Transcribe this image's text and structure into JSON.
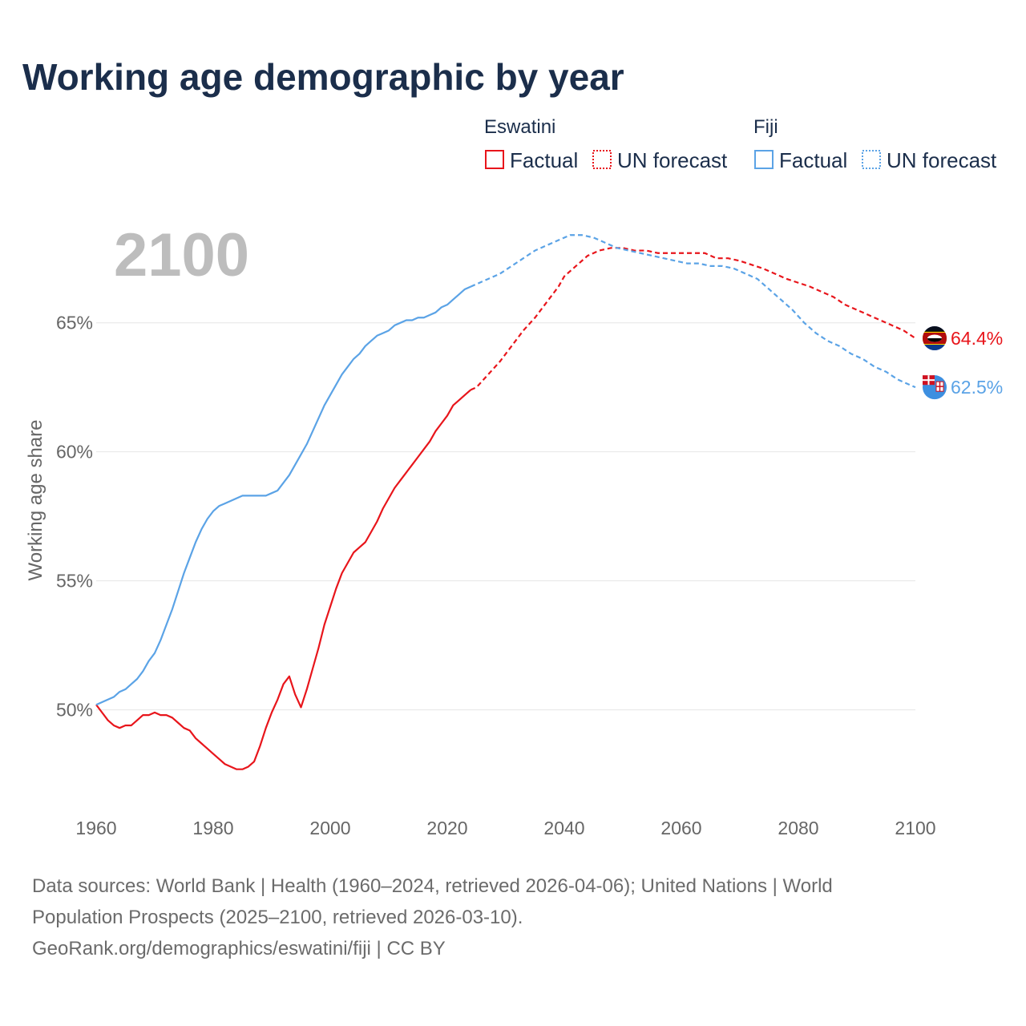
{
  "title": "Working age demographic by year",
  "year_watermark": "2100",
  "legend": {
    "groups": [
      {
        "name": "Eswatini",
        "color": "#e8151b",
        "factual_label": "Factual",
        "forecast_label": "UN forecast"
      },
      {
        "name": "Fiji",
        "color": "#5ba3e6",
        "factual_label": "Factual",
        "forecast_label": "UN forecast"
      }
    ]
  },
  "end_labels": {
    "eswatini": "64.4%",
    "fiji": "62.5%"
  },
  "flags": {
    "eswatini": "eswatini-flag-icon",
    "fiji": "fiji-flag-icon"
  },
  "source": {
    "line1": "Data sources: World Bank | Health (1960–2024, retrieved 2026-04-06); United Nations | World",
    "line2": "Population Prospects (2025–2100, retrieved 2026-03-10).",
    "line3": "GeoRank.org/demographics/eswatini/fiji | CC BY"
  },
  "chart_data": {
    "type": "line",
    "title": "Working age demographic by year",
    "xlabel": "",
    "ylabel": "Working age share",
    "xlim": [
      1960,
      2100
    ],
    "ylim": [
      46.2,
      68.5
    ],
    "x_ticks": [
      1960,
      1980,
      2000,
      2020,
      2040,
      2060,
      2080,
      2100
    ],
    "x_tick_labels": [
      "1960",
      "1980",
      "2000",
      "2020",
      "2040",
      "2060",
      "2080",
      "2100"
    ],
    "y_ticks": [
      50,
      55,
      60,
      65
    ],
    "y_tick_labels": [
      "50%",
      "55%",
      "60%",
      "65%"
    ],
    "grid": true,
    "factual_end_year": 2024,
    "series": [
      {
        "name": "Eswatini",
        "color": "#e8151b",
        "end_label": "64.4%",
        "points": [
          [
            1960,
            50.2
          ],
          [
            1961,
            49.9
          ],
          [
            1962,
            49.6
          ],
          [
            1963,
            49.4
          ],
          [
            1964,
            49.3
          ],
          [
            1965,
            49.4
          ],
          [
            1966,
            49.4
          ],
          [
            1967,
            49.6
          ],
          [
            1968,
            49.8
          ],
          [
            1969,
            49.8
          ],
          [
            1970,
            49.9
          ],
          [
            1971,
            49.8
          ],
          [
            1972,
            49.8
          ],
          [
            1973,
            49.7
          ],
          [
            1974,
            49.5
          ],
          [
            1975,
            49.3
          ],
          [
            1976,
            49.2
          ],
          [
            1977,
            48.9
          ],
          [
            1978,
            48.7
          ],
          [
            1979,
            48.5
          ],
          [
            1980,
            48.3
          ],
          [
            1981,
            48.1
          ],
          [
            1982,
            47.9
          ],
          [
            1983,
            47.8
          ],
          [
            1984,
            47.7
          ],
          [
            1985,
            47.7
          ],
          [
            1986,
            47.8
          ],
          [
            1987,
            48.0
          ],
          [
            1988,
            48.6
          ],
          [
            1989,
            49.3
          ],
          [
            1990,
            49.9
          ],
          [
            1991,
            50.4
          ],
          [
            1992,
            51.0
          ],
          [
            1993,
            51.3
          ],
          [
            1994,
            50.6
          ],
          [
            1995,
            50.1
          ],
          [
            1996,
            50.8
          ],
          [
            1997,
            51.6
          ],
          [
            1998,
            52.4
          ],
          [
            1999,
            53.3
          ],
          [
            2000,
            54.0
          ],
          [
            2001,
            54.7
          ],
          [
            2002,
            55.3
          ],
          [
            2003,
            55.7
          ],
          [
            2004,
            56.1
          ],
          [
            2005,
            56.3
          ],
          [
            2006,
            56.5
          ],
          [
            2007,
            56.9
          ],
          [
            2008,
            57.3
          ],
          [
            2009,
            57.8
          ],
          [
            2010,
            58.2
          ],
          [
            2011,
            58.6
          ],
          [
            2012,
            58.9
          ],
          [
            2013,
            59.2
          ],
          [
            2014,
            59.5
          ],
          [
            2015,
            59.8
          ],
          [
            2016,
            60.1
          ],
          [
            2017,
            60.4
          ],
          [
            2018,
            60.8
          ],
          [
            2019,
            61.1
          ],
          [
            2020,
            61.4
          ],
          [
            2021,
            61.8
          ],
          [
            2022,
            62.0
          ],
          [
            2023,
            62.2
          ],
          [
            2024,
            62.4
          ],
          [
            2025,
            62.5
          ],
          [
            2027,
            63.0
          ],
          [
            2029,
            63.5
          ],
          [
            2031,
            64.1
          ],
          [
            2033,
            64.7
          ],
          [
            2035,
            65.2
          ],
          [
            2037,
            65.8
          ],
          [
            2039,
            66.4
          ],
          [
            2040,
            66.8
          ],
          [
            2042,
            67.2
          ],
          [
            2044,
            67.6
          ],
          [
            2046,
            67.8
          ],
          [
            2048,
            67.9
          ],
          [
            2050,
            67.9
          ],
          [
            2052,
            67.8
          ],
          [
            2054,
            67.8
          ],
          [
            2056,
            67.7
          ],
          [
            2058,
            67.7
          ],
          [
            2060,
            67.7
          ],
          [
            2064,
            67.7
          ],
          [
            2066,
            67.5
          ],
          [
            2068,
            67.5
          ],
          [
            2070,
            67.4
          ],
          [
            2074,
            67.1
          ],
          [
            2076,
            66.9
          ],
          [
            2078,
            66.7
          ],
          [
            2082,
            66.4
          ],
          [
            2084,
            66.2
          ],
          [
            2086,
            66.0
          ],
          [
            2088,
            65.7
          ],
          [
            2090,
            65.5
          ],
          [
            2092,
            65.3
          ],
          [
            2094,
            65.1
          ],
          [
            2096,
            64.9
          ],
          [
            2098,
            64.7
          ],
          [
            2100,
            64.4
          ]
        ]
      },
      {
        "name": "Fiji",
        "color": "#5ba3e6",
        "end_label": "62.5%",
        "points": [
          [
            1960,
            50.2
          ],
          [
            1961,
            50.3
          ],
          [
            1962,
            50.4
          ],
          [
            1963,
            50.5
          ],
          [
            1964,
            50.7
          ],
          [
            1965,
            50.8
          ],
          [
            1966,
            51.0
          ],
          [
            1967,
            51.2
          ],
          [
            1968,
            51.5
          ],
          [
            1969,
            51.9
          ],
          [
            1970,
            52.2
          ],
          [
            1971,
            52.7
          ],
          [
            1972,
            53.3
          ],
          [
            1973,
            53.9
          ],
          [
            1974,
            54.6
          ],
          [
            1975,
            55.3
          ],
          [
            1976,
            55.9
          ],
          [
            1977,
            56.5
          ],
          [
            1978,
            57.0
          ],
          [
            1979,
            57.4
          ],
          [
            1980,
            57.7
          ],
          [
            1981,
            57.9
          ],
          [
            1982,
            58.0
          ],
          [
            1983,
            58.1
          ],
          [
            1984,
            58.2
          ],
          [
            1985,
            58.3
          ],
          [
            1986,
            58.3
          ],
          [
            1987,
            58.3
          ],
          [
            1988,
            58.3
          ],
          [
            1989,
            58.3
          ],
          [
            1990,
            58.4
          ],
          [
            1991,
            58.5
          ],
          [
            1992,
            58.8
          ],
          [
            1993,
            59.1
          ],
          [
            1994,
            59.5
          ],
          [
            1995,
            59.9
          ],
          [
            1996,
            60.3
          ],
          [
            1997,
            60.8
          ],
          [
            1998,
            61.3
          ],
          [
            1999,
            61.8
          ],
          [
            2000,
            62.2
          ],
          [
            2001,
            62.6
          ],
          [
            2002,
            63.0
          ],
          [
            2003,
            63.3
          ],
          [
            2004,
            63.6
          ],
          [
            2005,
            63.8
          ],
          [
            2006,
            64.1
          ],
          [
            2007,
            64.3
          ],
          [
            2008,
            64.5
          ],
          [
            2009,
            64.6
          ],
          [
            2010,
            64.7
          ],
          [
            2011,
            64.9
          ],
          [
            2012,
            65.0
          ],
          [
            2013,
            65.1
          ],
          [
            2014,
            65.1
          ],
          [
            2015,
            65.2
          ],
          [
            2016,
            65.2
          ],
          [
            2017,
            65.3
          ],
          [
            2018,
            65.4
          ],
          [
            2019,
            65.6
          ],
          [
            2020,
            65.7
          ],
          [
            2021,
            65.9
          ],
          [
            2022,
            66.1
          ],
          [
            2023,
            66.3
          ],
          [
            2024,
            66.4
          ],
          [
            2025,
            66.5
          ],
          [
            2027,
            66.7
          ],
          [
            2029,
            66.9
          ],
          [
            2031,
            67.2
          ],
          [
            2033,
            67.5
          ],
          [
            2035,
            67.8
          ],
          [
            2037,
            68.0
          ],
          [
            2039,
            68.2
          ],
          [
            2041,
            68.4
          ],
          [
            2043,
            68.4
          ],
          [
            2045,
            68.3
          ],
          [
            2047,
            68.1
          ],
          [
            2049,
            67.9
          ],
          [
            2051,
            67.8
          ],
          [
            2053,
            67.7
          ],
          [
            2055,
            67.6
          ],
          [
            2057,
            67.5
          ],
          [
            2059,
            67.4
          ],
          [
            2061,
            67.3
          ],
          [
            2063,
            67.3
          ],
          [
            2065,
            67.2
          ],
          [
            2067,
            67.2
          ],
          [
            2069,
            67.1
          ],
          [
            2071,
            66.9
          ],
          [
            2073,
            66.7
          ],
          [
            2075,
            66.3
          ],
          [
            2077,
            65.9
          ],
          [
            2079,
            65.5
          ],
          [
            2081,
            65.0
          ],
          [
            2083,
            64.6
          ],
          [
            2085,
            64.3
          ],
          [
            2087,
            64.1
          ],
          [
            2089,
            63.8
          ],
          [
            2091,
            63.6
          ],
          [
            2093,
            63.3
          ],
          [
            2095,
            63.1
          ],
          [
            2097,
            62.8
          ],
          [
            2099,
            62.6
          ],
          [
            2100,
            62.5
          ]
        ]
      }
    ]
  }
}
